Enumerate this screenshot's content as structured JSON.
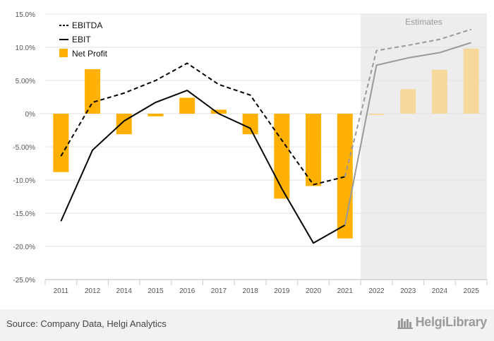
{
  "chart_data": {
    "type": "bar+line",
    "title": "",
    "xlabel": "",
    "ylabel": "",
    "categories": [
      "2011",
      "2012",
      "2014",
      "2015",
      "2016",
      "2017",
      "2018",
      "2019",
      "2020",
      "2021",
      "2022",
      "2023",
      "2024",
      "2025"
    ],
    "estimate_start_index": 10,
    "estimates_label": "Estimates",
    "ylim": [
      -25,
      15
    ],
    "yticks": [
      15,
      10,
      5,
      0,
      -5,
      -10,
      -15,
      -20,
      -25
    ],
    "ytick_labels": [
      "15.0%",
      "10.0%",
      "5.00%",
      "0%",
      "-5.00%",
      "-10.0%",
      "-15.0%",
      "-20.0%",
      "-25.0%"
    ],
    "series": [
      {
        "name": "EBITDA",
        "kind": "line",
        "style": "dashed",
        "color": "#000000",
        "values": [
          -6.4,
          1.7,
          3.1,
          5.0,
          7.6,
          4.4,
          2.8,
          -4.0,
          -10.7,
          -9.5,
          9.5,
          10.3,
          11.2,
          12.7
        ]
      },
      {
        "name": "EBIT",
        "kind": "line",
        "style": "solid",
        "color": "#000000",
        "values": [
          -16.2,
          -5.5,
          -1.1,
          1.7,
          3.5,
          0.0,
          -2.2,
          -11.3,
          -19.5,
          -16.8,
          7.3,
          8.4,
          9.2,
          10.7
        ]
      },
      {
        "name": "Net Profit",
        "kind": "bar",
        "color": "#FFB000",
        "values": [
          -8.8,
          6.7,
          -3.1,
          -0.4,
          2.4,
          0.6,
          -3.1,
          -12.8,
          -10.9,
          -18.8,
          -0.2,
          3.7,
          6.6,
          9.8
        ]
      }
    ],
    "legend_position": "top-left",
    "grid": true
  },
  "footer": {
    "source": "Source: Company Data, Helgi Analytics",
    "brand": "HelgiLibrary"
  },
  "colors": {
    "bar": "#FFB000",
    "bar_estimate": "#F5D89A",
    "line_estimate": "#999999",
    "estimate_bg": "#ededed"
  }
}
